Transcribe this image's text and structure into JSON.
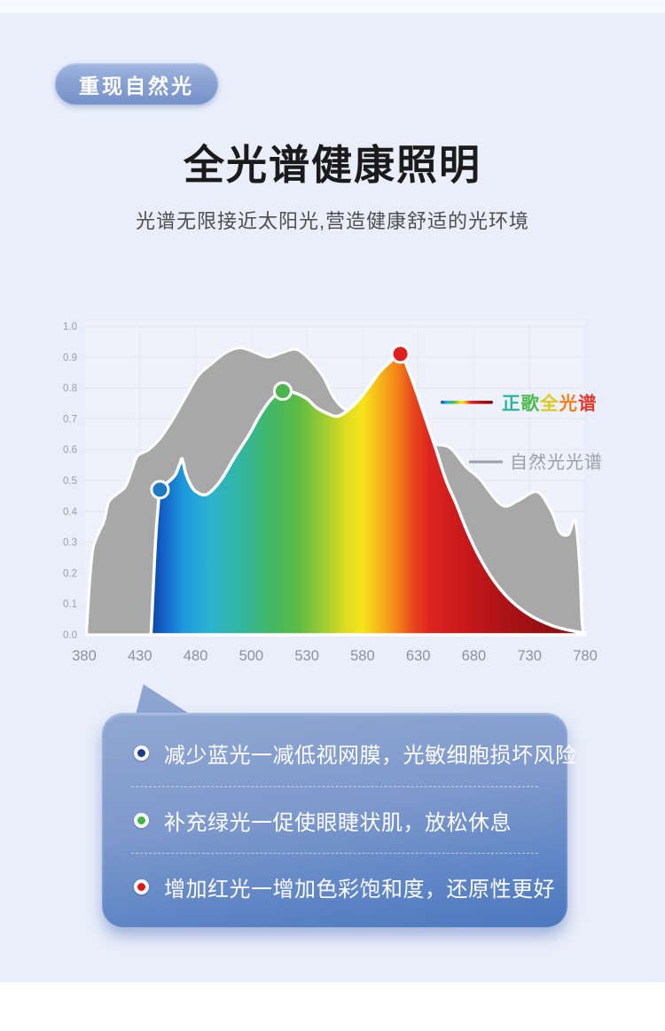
{
  "badge": {
    "label": "重现自然光",
    "bg_light": "#8aa3d4",
    "bg_dark": "#7690c9",
    "text_color": "#ffffff"
  },
  "header": {
    "title": "全光谱健康照明",
    "subtitle": "光谱无限接近太阳光,营造健康舒适的光环境"
  },
  "chart_data": {
    "type": "area",
    "title": "",
    "xlabel": "",
    "ylabel": "",
    "ylim": [
      0,
      1
    ],
    "grid": true,
    "x_ticks": [
      "380",
      "430",
      "480",
      "500",
      "530",
      "580",
      "630",
      "680",
      "730",
      "780"
    ],
    "y_ticks": [
      "0.0",
      "0.1",
      "0.2",
      "0.3",
      "0.4",
      "0.5",
      "0.6",
      "0.7",
      "0.8",
      "0.9",
      "1.0"
    ],
    "legend_position": "right-middle",
    "series": [
      {
        "name": "自然光光谱",
        "color": "#a8a8a8",
        "points": [
          [
            382,
            0
          ],
          [
            385,
            0.175
          ],
          [
            388,
            0.28
          ],
          [
            393,
            0.33
          ],
          [
            398,
            0.37
          ],
          [
            402,
            0.43
          ],
          [
            409,
            0.455
          ],
          [
            417,
            0.48
          ],
          [
            423,
            0.535
          ],
          [
            428,
            0.58
          ],
          [
            438,
            0.6
          ],
          [
            449,
            0.64
          ],
          [
            460,
            0.7
          ],
          [
            471,
            0.77
          ],
          [
            481,
            0.84
          ],
          [
            486,
            0.88
          ],
          [
            491,
            0.915
          ],
          [
            496,
            0.93
          ],
          [
            502,
            0.915
          ],
          [
            509,
            0.9
          ],
          [
            517,
            0.915
          ],
          [
            524,
            0.925
          ],
          [
            531,
            0.897
          ],
          [
            544,
            0.84
          ],
          [
            554,
            0.77
          ],
          [
            565,
            0.73
          ],
          [
            574,
            0.753
          ],
          [
            584,
            0.776
          ],
          [
            600,
            0.72
          ],
          [
            620,
            0.66
          ],
          [
            640,
            0.62
          ],
          [
            658,
            0.607
          ],
          [
            673,
            0.543
          ],
          [
            685,
            0.506
          ],
          [
            705,
            0.42
          ],
          [
            720,
            0.435
          ],
          [
            737,
            0.463
          ],
          [
            750,
            0.397
          ],
          [
            757,
            0.333
          ],
          [
            765,
            0.325
          ],
          [
            771,
            0.368
          ],
          [
            775,
            0.22
          ],
          [
            777,
            0.046
          ],
          [
            779,
            0
          ]
        ]
      },
      {
        "name": "正歌全光谱",
        "fill": "rainbow-gradient",
        "points": [
          [
            440,
            0
          ],
          [
            442,
            0.15
          ],
          [
            444,
            0.3
          ],
          [
            446,
            0.4
          ],
          [
            448,
            0.47
          ],
          [
            452,
            0.485
          ],
          [
            457,
            0.5
          ],
          [
            462,
            0.52
          ],
          [
            466,
            0.555
          ],
          [
            468,
            0.57
          ],
          [
            471,
            0.525
          ],
          [
            475,
            0.49
          ],
          [
            480,
            0.465
          ],
          [
            484,
            0.455
          ],
          [
            489,
            0.5
          ],
          [
            494,
            0.575
          ],
          [
            499,
            0.645
          ],
          [
            505,
            0.715
          ],
          [
            511,
            0.765
          ],
          [
            517,
            0.79
          ],
          [
            523,
            0.785
          ],
          [
            530,
            0.765
          ],
          [
            538,
            0.738
          ],
          [
            548,
            0.718
          ],
          [
            557,
            0.708
          ],
          [
            566,
            0.725
          ],
          [
            575,
            0.755
          ],
          [
            585,
            0.8
          ],
          [
            595,
            0.85
          ],
          [
            605,
            0.885
          ],
          [
            614,
            0.91
          ],
          [
            622,
            0.85
          ],
          [
            630,
            0.77
          ],
          [
            638,
            0.685
          ],
          [
            646,
            0.6
          ],
          [
            655,
            0.5
          ],
          [
            664,
            0.425
          ],
          [
            674,
            0.335
          ],
          [
            686,
            0.245
          ],
          [
            700,
            0.165
          ],
          [
            715,
            0.105
          ],
          [
            732,
            0.06
          ],
          [
            750,
            0.03
          ],
          [
            765,
            0.015
          ],
          [
            780,
            0.005
          ]
        ]
      }
    ],
    "highlight_points": [
      {
        "label": "blue",
        "x": 448,
        "y": 0.47,
        "color": "#1e7ac2"
      },
      {
        "label": "green",
        "x": 517,
        "y": 0.79,
        "color": "#4cb54d"
      },
      {
        "label": "red",
        "x": 614,
        "y": 0.91,
        "color": "#e01f1f"
      }
    ],
    "spectrum_colors": [
      [
        440,
        "#0c41a3"
      ],
      [
        452,
        "#1565cb"
      ],
      [
        470,
        "#1e9ade"
      ],
      [
        485,
        "#2cb3cf"
      ],
      [
        497,
        "#33b69c"
      ],
      [
        510,
        "#43b866"
      ],
      [
        525,
        "#5bbb45"
      ],
      [
        545,
        "#9ccb32"
      ],
      [
        565,
        "#e0dc20"
      ],
      [
        580,
        "#f6e41c"
      ],
      [
        597,
        "#f6b219"
      ],
      [
        612,
        "#f28018"
      ],
      [
        625,
        "#e8481d"
      ],
      [
        640,
        "#de2520"
      ],
      [
        670,
        "#c8191b"
      ],
      [
        710,
        "#aa1215"
      ],
      [
        750,
        "#930f12"
      ],
      [
        780,
        "#860d10"
      ]
    ],
    "legend_full": {
      "chars": [
        {
          "ch": "正",
          "color": "#2bb39b"
        },
        {
          "ch": "歌",
          "color": "#4db84e"
        },
        {
          "ch": "全",
          "color": "#d9c922"
        },
        {
          "ch": "光",
          "color": "#f0821e"
        },
        {
          "ch": "谱",
          "color": "#e23a2e"
        }
      ]
    },
    "legend_natural": {
      "label": "自然光光谱",
      "color": "#9aa0a6"
    }
  },
  "callout": {
    "items": [
      {
        "dot_color": "#1a3a8c",
        "text": "减少蓝光一减低视网膜，光敏细胞损坏风险"
      },
      {
        "dot_color": "#3eb44a",
        "text": "补充绿光一促使眼睫状肌，放松休息"
      },
      {
        "dot_color": "#e01616",
        "text": "增加红光一增加色彩饱和度，还原性更好"
      }
    ]
  }
}
